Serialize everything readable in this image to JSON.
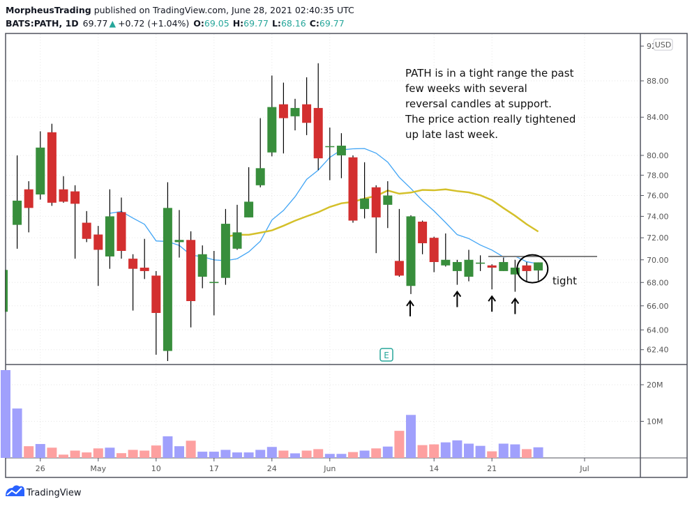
{
  "header": {
    "author": "MorpheusTrading",
    "published": "published on TradingView.com, June 28, 2021 02:40:35 UTC",
    "symbol": "BATS:PATH, 1D",
    "last": "69.77",
    "change": "+0.72 (+1.04%)",
    "o_label": "O:",
    "o": "69.05",
    "h_label": "H:",
    "h": "69.77",
    "l_label": "L:",
    "l": "68.16",
    "c_label": "C:",
    "c": "69.77",
    "up_color": "#26a69a"
  },
  "currency_badge": "USD",
  "earnings_badge": "E",
  "logo_text": "TradingView",
  "annotation": {
    "lines": [
      "PATH is in a tight range the past",
      "few weeks with several",
      "reversal candles at support.",
      "The price action really tightened",
      "up late last week."
    ],
    "tight_label": "tight"
  },
  "chart_data": {
    "type": "candlestick",
    "price_scale": "log",
    "ylim": [
      61.3,
      92.5
    ],
    "y_ticks": [
      "92",
      "88.00",
      "84.00",
      "80.00",
      "78.00",
      "76.00",
      "74.00",
      "72.00",
      "70.00",
      "68.00",
      "66.00",
      "64.00",
      "62.40"
    ],
    "y_tick_values": [
      92,
      88,
      84,
      80,
      78,
      76,
      74,
      72,
      70,
      68,
      66,
      64,
      62.4
    ],
    "volume_ticks": [
      "20M",
      "10M"
    ],
    "volume_tick_values": [
      20,
      10
    ],
    "x_ticks": [
      {
        "label": "26",
        "index": 3
      },
      {
        "label": "May",
        "index": 8
      },
      {
        "label": "10",
        "index": 13
      },
      {
        "label": "17",
        "index": 18
      },
      {
        "label": "24",
        "index": 23
      },
      {
        "label": "Jun",
        "index": 28
      },
      {
        "label": "14",
        "index": 37
      },
      {
        "label": "21",
        "index": 42
      },
      {
        "label": "Jul",
        "index": 50
      }
    ],
    "colors": {
      "up": "#388e3c",
      "down": "#d32f2f",
      "vol_up": "#a0a0fc",
      "vol_down": "#fda0a0",
      "sma_fast": "#42a5f5",
      "sma_slow": "#d4c02a"
    },
    "moving_averages": [
      {
        "period": 10,
        "color": "#42a5f5"
      },
      {
        "period": 20,
        "color": "#d4c02a"
      }
    ],
    "resistance_level": 70.3,
    "candles": [
      {
        "date": "2021-04-21",
        "o": 65.5,
        "h": 69.1,
        "l": 65.5,
        "c": 69.1,
        "v": 24.0
      },
      {
        "date": "2021-04-22",
        "o": 73.2,
        "h": 80.0,
        "l": 71.0,
        "c": 75.5,
        "v": 13.5
      },
      {
        "date": "2021-04-23",
        "o": 76.6,
        "h": 77.4,
        "l": 72.5,
        "c": 74.8,
        "v": 3.2
      },
      {
        "date": "2021-04-26",
        "o": 76.1,
        "h": 82.5,
        "l": 75.6,
        "c": 80.8,
        "v": 3.8
      },
      {
        "date": "2021-04-27",
        "o": 82.4,
        "h": 83.3,
        "l": 75.0,
        "c": 75.3,
        "v": 2.8
      },
      {
        "date": "2021-04-28",
        "o": 76.6,
        "h": 77.9,
        "l": 75.3,
        "c": 75.4,
        "v": 0.9
      },
      {
        "date": "2021-04-29",
        "o": 76.4,
        "h": 77.0,
        "l": 70.1,
        "c": 75.2,
        "v": 2.0
      },
      {
        "date": "2021-04-30",
        "o": 73.4,
        "h": 74.5,
        "l": 71.6,
        "c": 71.9,
        "v": 1.5
      },
      {
        "date": "2021-05-03",
        "o": 72.3,
        "h": 73.1,
        "l": 67.7,
        "c": 70.9,
        "v": 2.6
      },
      {
        "date": "2021-05-04",
        "o": 70.3,
        "h": 76.6,
        "l": 69.2,
        "c": 74.0,
        "v": 2.8
      },
      {
        "date": "2021-05-05",
        "o": 74.4,
        "h": 75.8,
        "l": 70.1,
        "c": 70.8,
        "v": 1.3
      },
      {
        "date": "2021-05-06",
        "o": 70.1,
        "h": 70.5,
        "l": 65.6,
        "c": 69.2,
        "v": 2.2
      },
      {
        "date": "2021-05-07",
        "o": 69.3,
        "h": 71.9,
        "l": 68.3,
        "c": 69.0,
        "v": 2.0
      },
      {
        "date": "2021-05-10",
        "o": 68.6,
        "h": 69.0,
        "l": 62.0,
        "c": 65.4,
        "v": 3.4
      },
      {
        "date": "2021-05-11",
        "o": 62.3,
        "h": 77.3,
        "l": 61.5,
        "c": 74.8,
        "v": 5.9
      },
      {
        "date": "2021-05-12",
        "o": 71.6,
        "h": 74.6,
        "l": 70.2,
        "c": 71.8,
        "v": 3.2
      },
      {
        "date": "2021-05-13",
        "o": 71.8,
        "h": 72.6,
        "l": 64.2,
        "c": 66.4,
        "v": 4.7
      },
      {
        "date": "2021-05-14",
        "o": 68.5,
        "h": 71.3,
        "l": 67.5,
        "c": 70.5,
        "v": 1.7
      },
      {
        "date": "2021-05-17",
        "o": 67.95,
        "h": 70.8,
        "l": 65.2,
        "c": 68.05,
        "v": 1.7
      },
      {
        "date": "2021-05-18",
        "o": 68.4,
        "h": 74.7,
        "l": 67.8,
        "c": 73.3,
        "v": 2.2
      },
      {
        "date": "2021-05-19",
        "o": 71.0,
        "h": 75.1,
        "l": 70.9,
        "c": 72.5,
        "v": 1.5
      },
      {
        "date": "2021-05-20",
        "o": 73.9,
        "h": 78.8,
        "l": 73.9,
        "c": 75.4,
        "v": 1.5
      },
      {
        "date": "2021-05-21",
        "o": 77.0,
        "h": 83.9,
        "l": 76.8,
        "c": 78.7,
        "v": 2.2
      },
      {
        "date": "2021-05-24",
        "o": 80.3,
        "h": 88.6,
        "l": 79.9,
        "c": 85.1,
        "v": 3.0
      },
      {
        "date": "2021-05-25",
        "o": 85.4,
        "h": 87.8,
        "l": 80.2,
        "c": 83.9,
        "v": 2.0
      },
      {
        "date": "2021-05-26",
        "o": 84.1,
        "h": 86.0,
        "l": 82.6,
        "c": 85.0,
        "v": 1.25
      },
      {
        "date": "2021-05-27",
        "o": 85.4,
        "h": 88.4,
        "l": 82.1,
        "c": 83.4,
        "v": 2.0
      },
      {
        "date": "2021-05-28",
        "o": 85.0,
        "h": 90.0,
        "l": 78.5,
        "c": 79.7,
        "v": 2.4
      },
      {
        "date": "2021-06-01",
        "o": 80.85,
        "h": 82.9,
        "l": 77.5,
        "c": 80.95,
        "v": 1.1
      },
      {
        "date": "2021-06-02",
        "o": 80.0,
        "h": 82.3,
        "l": 77.7,
        "c": 81.0,
        "v": 1.1
      },
      {
        "date": "2021-06-03",
        "o": 79.8,
        "h": 80.0,
        "l": 73.4,
        "c": 73.6,
        "v": 1.6
      },
      {
        "date": "2021-06-04",
        "o": 74.7,
        "h": 79.3,
        "l": 73.8,
        "c": 75.7,
        "v": 2.0
      },
      {
        "date": "2021-06-07",
        "o": 76.8,
        "h": 77.0,
        "l": 70.6,
        "c": 73.9,
        "v": 2.6
      },
      {
        "date": "2021-06-08",
        "o": 75.1,
        "h": 77.4,
        "l": 72.9,
        "c": 76.0,
        "v": 3.1
      },
      {
        "date": "2021-06-09",
        "o": 69.9,
        "h": 74.7,
        "l": 68.5,
        "c": 68.6,
        "v": 7.4
      },
      {
        "date": "2021-06-10",
        "o": 67.7,
        "h": 74.1,
        "l": 67.0,
        "c": 74.0,
        "v": 11.75
      },
      {
        "date": "2021-06-11",
        "o": 73.5,
        "h": 73.6,
        "l": 70.5,
        "c": 71.5,
        "v": 3.5
      },
      {
        "date": "2021-06-14",
        "o": 72.0,
        "h": 72.1,
        "l": 68.9,
        "c": 69.8,
        "v": 3.7
      },
      {
        "date": "2021-06-15",
        "o": 69.5,
        "h": 72.4,
        "l": 69.4,
        "c": 70.0,
        "v": 4.25
      },
      {
        "date": "2021-06-16",
        "o": 69.0,
        "h": 70.0,
        "l": 67.8,
        "c": 69.8,
        "v": 4.8
      },
      {
        "date": "2021-06-17",
        "o": 68.5,
        "h": 70.9,
        "l": 68.1,
        "c": 70.0,
        "v": 3.9
      },
      {
        "date": "2021-06-18",
        "o": 69.65,
        "h": 70.4,
        "l": 69.0,
        "c": 69.75,
        "v": 3.3
      },
      {
        "date": "2021-06-21",
        "o": 69.5,
        "h": 69.6,
        "l": 67.4,
        "c": 69.3,
        "v": 1.8
      },
      {
        "date": "2021-06-22",
        "o": 69.0,
        "h": 70.2,
        "l": 69.0,
        "c": 69.8,
        "v": 3.9
      },
      {
        "date": "2021-06-23",
        "o": 68.7,
        "h": 70.0,
        "l": 67.2,
        "c": 69.3,
        "v": 3.7
      },
      {
        "date": "2021-06-24",
        "o": 69.5,
        "h": 69.8,
        "l": 68.1,
        "c": 69.0,
        "v": 2.4
      },
      {
        "date": "2021-06-25",
        "o": 69.05,
        "h": 69.77,
        "l": 68.16,
        "c": 69.77,
        "v": 2.9
      }
    ],
    "reversal_arrow_dates": [
      "2021-06-10",
      "2021-06-16",
      "2021-06-21",
      "2021-06-23"
    ],
    "circled_dates": [
      "2021-06-24",
      "2021-06-25"
    ]
  }
}
